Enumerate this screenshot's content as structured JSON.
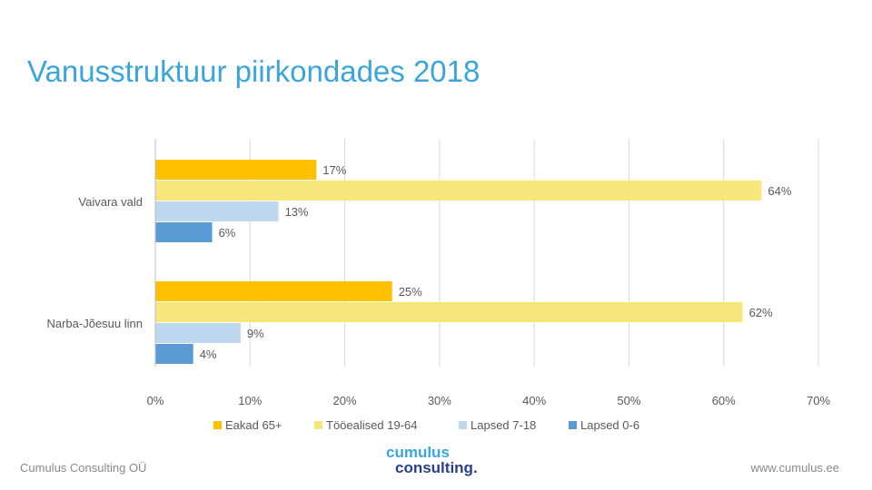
{
  "page": {
    "title": "Vanusstruktuur piirkondades 2018"
  },
  "footer": {
    "left": "Cumulus Consulting OÜ",
    "right": "www.cumulus.ee",
    "logo_line1": "cumulus",
    "logo_line2": "consulting."
  },
  "chart_data": {
    "type": "bar",
    "orientation": "horizontal",
    "title": "Vanusstruktuur piirkondades 2018",
    "categories": [
      "Vaivara vald",
      "Narba-Jõesuu linn"
    ],
    "series": [
      {
        "name": "Eakad 65+",
        "color": "#ffc000",
        "values": [
          17,
          25
        ],
        "labels": [
          "17%",
          "25%"
        ]
      },
      {
        "name": "Tööealised 19-64",
        "color": "#f7e67a",
        "values": [
          64,
          62
        ],
        "labels": [
          "64%",
          "62%"
        ]
      },
      {
        "name": "Lapsed 7-18",
        "color": "#bdd7ee",
        "values": [
          13,
          9
        ],
        "labels": [
          "13%",
          "9%"
        ]
      },
      {
        "name": "Lapsed 0-6",
        "color": "#5b9bd5",
        "values": [
          6,
          4
        ],
        "labels": [
          "6%",
          "4%"
        ]
      }
    ],
    "xlim": [
      0,
      70
    ],
    "xticks": [
      "0%",
      "10%",
      "20%",
      "30%",
      "40%",
      "50%",
      "60%",
      "70%"
    ],
    "grid": true,
    "legend_position": "bottom"
  }
}
